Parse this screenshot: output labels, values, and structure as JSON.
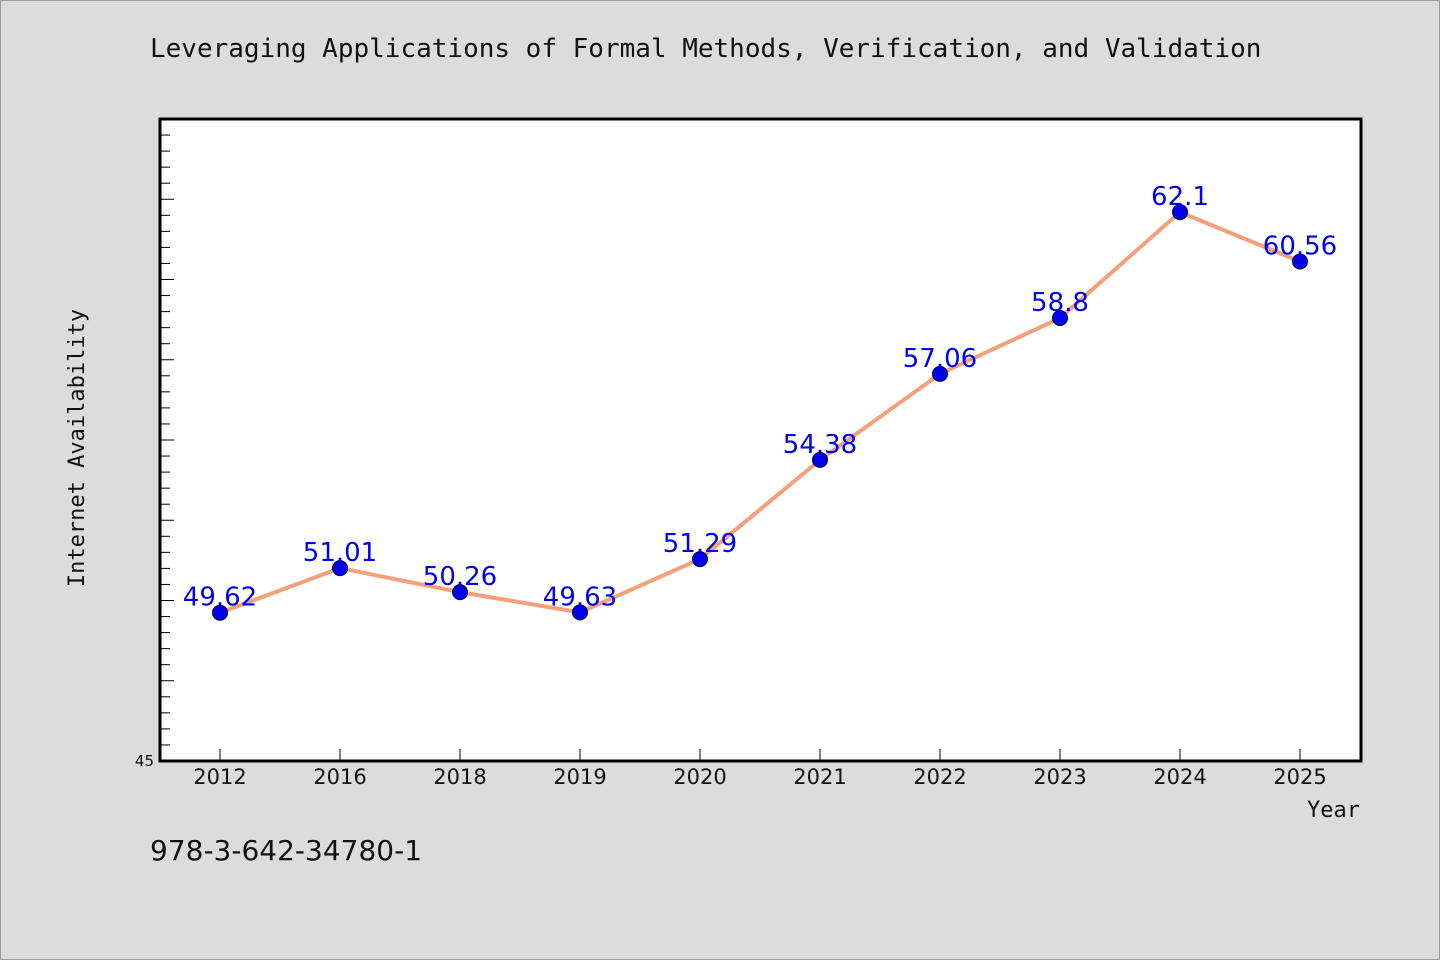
{
  "chart_data": {
    "type": "line",
    "title": "Leveraging Applications of Formal Methods, Verification, and Validation",
    "xlabel": "Year",
    "ylabel": "Internet Availability",
    "categories": [
      "2012",
      "2016",
      "2018",
      "2019",
      "2020",
      "2021",
      "2022",
      "2023",
      "2024",
      "2025"
    ],
    "series": [
      {
        "values": [
          49.62,
          51.01,
          50.26,
          49.63,
          51.29,
          54.38,
          57.06,
          58.8,
          62.1,
          60.56
        ],
        "labels": [
          "49.62",
          "51.01",
          "50.26",
          "49.63",
          "51.29",
          "54.38",
          "57.06",
          "58.8",
          "62.1",
          "60.56"
        ],
        "line_color": "#f4a07a",
        "marker_color": "#0000ee",
        "label_color": "#0000ee"
      }
    ],
    "ylim": [
      45,
      65
    ],
    "y_tick_labels": [
      "45"
    ],
    "grid": false,
    "legend": "none"
  },
  "footer": {
    "isbn": "978-3-642-34780-1"
  },
  "colors": {
    "background": "#dcdcdc",
    "plot_background": "#ffffff"
  }
}
